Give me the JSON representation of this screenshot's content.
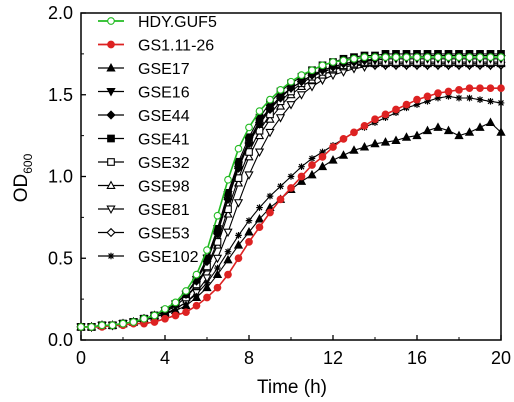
{
  "chart_data": {
    "type": "line",
    "title": "",
    "xlabel": "Time (h)",
    "ylabel_main": "OD",
    "ylabel_sub": "600",
    "xlim": [
      0,
      20
    ],
    "ylim": [
      0,
      2.0
    ],
    "xticks": [
      0,
      4,
      8,
      12,
      16,
      20
    ],
    "yticks": [
      "0.0",
      "0.5",
      "1.0",
      "1.5",
      "2.0"
    ],
    "grid": false,
    "legend_position": "top-left",
    "x": [
      0.0,
      0.5,
      1.0,
      1.5,
      2.0,
      2.5,
      3.0,
      3.5,
      4.0,
      4.5,
      5.0,
      5.5,
      6.0,
      6.5,
      7.0,
      7.5,
      8.0,
      8.5,
      9.0,
      9.5,
      10.0,
      10.5,
      11.0,
      11.5,
      12.0,
      12.5,
      13.0,
      13.5,
      14.0,
      14.5,
      15.0,
      15.5,
      16.0,
      16.5,
      17.0,
      17.5,
      18.0,
      18.5,
      19.0,
      19.5,
      20.0
    ],
    "series": [
      {
        "name": "HDY.GUF5",
        "marker": "circle-open",
        "color": "#22bb22",
        "values": [
          0.08,
          0.08,
          0.09,
          0.09,
          0.1,
          0.11,
          0.13,
          0.15,
          0.19,
          0.23,
          0.3,
          0.4,
          0.55,
          0.76,
          0.98,
          1.17,
          1.3,
          1.4,
          1.47,
          1.53,
          1.58,
          1.62,
          1.65,
          1.68,
          1.7,
          1.71,
          1.72,
          1.73,
          1.73,
          1.73,
          1.73,
          1.73,
          1.73,
          1.73,
          1.73,
          1.73,
          1.73,
          1.73,
          1.73,
          1.73,
          1.73
        ]
      },
      {
        "name": "GS1.11-26",
        "marker": "circle-filled",
        "color": "#dd2222",
        "values": [
          0.08,
          0.08,
          0.08,
          0.09,
          0.09,
          0.1,
          0.1,
          0.11,
          0.13,
          0.15,
          0.17,
          0.21,
          0.26,
          0.32,
          0.4,
          0.5,
          0.6,
          0.69,
          0.78,
          0.86,
          0.93,
          1.0,
          1.07,
          1.12,
          1.18,
          1.23,
          1.27,
          1.31,
          1.35,
          1.38,
          1.41,
          1.44,
          1.47,
          1.49,
          1.51,
          1.52,
          1.53,
          1.54,
          1.54,
          1.54,
          1.54
        ]
      },
      {
        "name": "GSE17",
        "marker": "triangle-up-filled",
        "color": "#000000",
        "values": [
          0.08,
          0.08,
          0.09,
          0.09,
          0.1,
          0.11,
          0.12,
          0.14,
          0.16,
          0.18,
          0.21,
          0.26,
          0.32,
          0.4,
          0.49,
          0.58,
          0.66,
          0.74,
          0.81,
          0.86,
          0.92,
          0.97,
          1.01,
          1.06,
          1.1,
          1.13,
          1.16,
          1.18,
          1.2,
          1.21,
          1.22,
          1.24,
          1.25,
          1.28,
          1.3,
          1.28,
          1.25,
          1.27,
          1.3,
          1.33,
          1.27
        ]
      },
      {
        "name": "GSE16",
        "marker": "triangle-down-filled",
        "color": "#000000",
        "values": [
          0.08,
          0.08,
          0.09,
          0.09,
          0.1,
          0.11,
          0.13,
          0.15,
          0.18,
          0.22,
          0.28,
          0.37,
          0.5,
          0.68,
          0.89,
          1.07,
          1.22,
          1.34,
          1.42,
          1.49,
          1.54,
          1.58,
          1.62,
          1.65,
          1.67,
          1.69,
          1.7,
          1.71,
          1.71,
          1.72,
          1.72,
          1.72,
          1.72,
          1.72,
          1.72,
          1.72,
          1.72,
          1.72,
          1.72,
          1.72,
          1.72
        ]
      },
      {
        "name": "GSE44",
        "marker": "diamond-filled",
        "color": "#000000",
        "values": [
          0.08,
          0.08,
          0.09,
          0.09,
          0.1,
          0.11,
          0.13,
          0.15,
          0.18,
          0.22,
          0.28,
          0.36,
          0.48,
          0.65,
          0.86,
          1.05,
          1.2,
          1.32,
          1.41,
          1.48,
          1.54,
          1.58,
          1.62,
          1.65,
          1.67,
          1.69,
          1.7,
          1.71,
          1.72,
          1.73,
          1.73,
          1.73,
          1.73,
          1.74,
          1.74,
          1.74,
          1.74,
          1.74,
          1.74,
          1.74,
          1.74
        ]
      },
      {
        "name": "GSE41",
        "marker": "square-filled",
        "color": "#000000",
        "values": [
          0.08,
          0.08,
          0.09,
          0.09,
          0.1,
          0.11,
          0.13,
          0.15,
          0.18,
          0.22,
          0.28,
          0.37,
          0.5,
          0.68,
          0.9,
          1.09,
          1.24,
          1.36,
          1.45,
          1.52,
          1.57,
          1.61,
          1.65,
          1.68,
          1.7,
          1.72,
          1.73,
          1.74,
          1.74,
          1.75,
          1.75,
          1.75,
          1.75,
          1.75,
          1.75,
          1.75,
          1.75,
          1.75,
          1.75,
          1.75,
          1.75
        ]
      },
      {
        "name": "GSE32",
        "marker": "square-open",
        "color": "#000000",
        "values": [
          0.08,
          0.08,
          0.09,
          0.09,
          0.1,
          0.11,
          0.13,
          0.15,
          0.17,
          0.21,
          0.26,
          0.34,
          0.45,
          0.6,
          0.8,
          0.99,
          1.15,
          1.28,
          1.38,
          1.46,
          1.52,
          1.57,
          1.61,
          1.64,
          1.66,
          1.68,
          1.69,
          1.7,
          1.7,
          1.7,
          1.7,
          1.7,
          1.7,
          1.7,
          1.7,
          1.7,
          1.7,
          1.7,
          1.7,
          1.7,
          1.7
        ]
      },
      {
        "name": "GSE98",
        "marker": "triangle-up-open",
        "color": "#000000",
        "values": [
          0.08,
          0.08,
          0.09,
          0.09,
          0.1,
          0.11,
          0.13,
          0.15,
          0.17,
          0.21,
          0.26,
          0.33,
          0.44,
          0.58,
          0.77,
          0.96,
          1.12,
          1.25,
          1.35,
          1.43,
          1.5,
          1.55,
          1.59,
          1.62,
          1.65,
          1.67,
          1.68,
          1.69,
          1.69,
          1.69,
          1.69,
          1.69,
          1.69,
          1.69,
          1.69,
          1.69,
          1.69,
          1.69,
          1.69,
          1.69,
          1.69
        ]
      },
      {
        "name": "GSE81",
        "marker": "triangle-down-open",
        "color": "#000000",
        "values": [
          0.08,
          0.08,
          0.09,
          0.09,
          0.1,
          0.11,
          0.12,
          0.14,
          0.16,
          0.19,
          0.23,
          0.29,
          0.38,
          0.5,
          0.66,
          0.84,
          1.01,
          1.15,
          1.27,
          1.36,
          1.44,
          1.5,
          1.55,
          1.59,
          1.62,
          1.64,
          1.66,
          1.67,
          1.68,
          1.68,
          1.68,
          1.68,
          1.68,
          1.68,
          1.68,
          1.68,
          1.68,
          1.68,
          1.68,
          1.68,
          1.68
        ]
      },
      {
        "name": "GSE53",
        "marker": "diamond-open",
        "color": "#000000",
        "values": [
          0.08,
          0.08,
          0.09,
          0.09,
          0.1,
          0.11,
          0.13,
          0.15,
          0.18,
          0.22,
          0.28,
          0.37,
          0.49,
          0.66,
          0.87,
          1.06,
          1.21,
          1.33,
          1.42,
          1.49,
          1.54,
          1.58,
          1.62,
          1.64,
          1.66,
          1.67,
          1.68,
          1.68,
          1.68,
          1.68,
          1.68,
          1.68,
          1.68,
          1.68,
          1.68,
          1.68,
          1.68,
          1.68,
          1.68,
          1.68,
          1.68
        ]
      },
      {
        "name": "GSE102",
        "marker": "asterisk",
        "color": "#000000",
        "values": [
          0.08,
          0.08,
          0.09,
          0.09,
          0.1,
          0.11,
          0.12,
          0.14,
          0.16,
          0.19,
          0.23,
          0.28,
          0.35,
          0.44,
          0.54,
          0.64,
          0.73,
          0.81,
          0.88,
          0.94,
          1.0,
          1.06,
          1.11,
          1.15,
          1.19,
          1.23,
          1.27,
          1.3,
          1.33,
          1.36,
          1.39,
          1.42,
          1.44,
          1.46,
          1.48,
          1.49,
          1.48,
          1.48,
          1.47,
          1.46,
          1.45
        ]
      }
    ]
  }
}
